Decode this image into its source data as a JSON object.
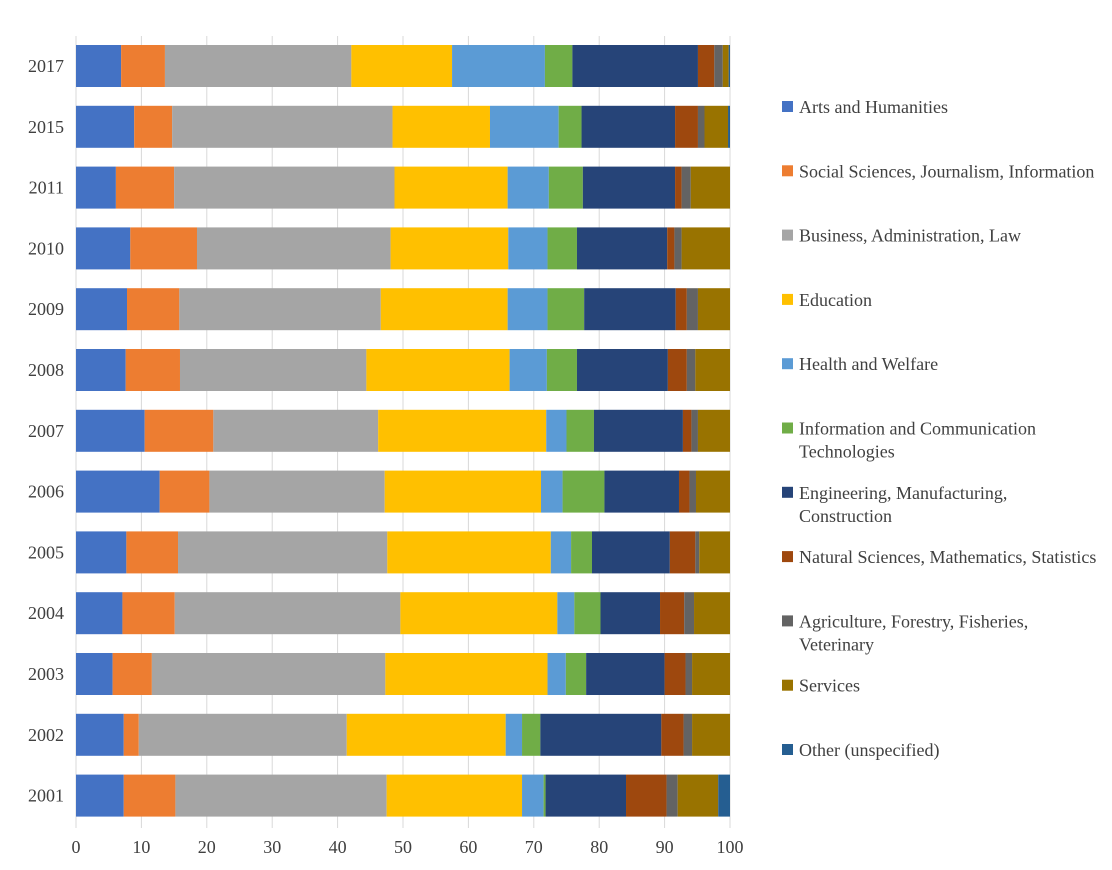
{
  "chart_data": {
    "type": "bar",
    "orientation": "horizontal",
    "stacked": true,
    "title": "",
    "xlabel": "",
    "ylabel": "",
    "xlim": [
      0,
      100
    ],
    "xticks": [
      "0",
      "10",
      "20",
      "30",
      "40",
      "50",
      "60",
      "70",
      "80",
      "90",
      "100"
    ],
    "grid": true,
    "legend_position": "right",
    "categories": [
      "2017",
      "2015",
      "2011",
      "2010",
      "2009",
      "2008",
      "2007",
      "2006",
      "2005",
      "2004",
      "2003",
      "2002",
      "2001"
    ],
    "series": [
      {
        "name": "Arts and Humanities",
        "color": "#4472c4",
        "values": [
          6.9,
          8.9,
          6.1,
          8.3,
          7.8,
          7.6,
          10.5,
          12.8,
          7.7,
          7.1,
          5.6,
          7.3,
          7.3
        ]
      },
      {
        "name": "Social Sciences, Journalism, Information",
        "color": "#ed7d31",
        "values": [
          6.7,
          5.8,
          8.9,
          10.2,
          8.0,
          8.3,
          10.5,
          7.6,
          7.9,
          8.0,
          6.0,
          2.3,
          7.9
        ]
      },
      {
        "name": "Business, Administration, Law",
        "color": "#a5a5a5",
        "values": [
          28.5,
          33.7,
          33.7,
          29.6,
          30.8,
          28.5,
          25.2,
          26.8,
          32.0,
          34.5,
          35.7,
          31.8,
          32.3
        ]
      },
      {
        "name": "Education",
        "color": "#ffc000",
        "values": [
          15.4,
          14.9,
          17.3,
          18.0,
          19.4,
          21.9,
          25.7,
          23.9,
          25.0,
          24.0,
          24.8,
          24.3,
          20.7
        ]
      },
      {
        "name": "Health and Welfare",
        "color": "#5b9bd5",
        "values": [
          14.2,
          10.5,
          6.3,
          6.0,
          6.1,
          5.7,
          3.1,
          3.3,
          3.1,
          2.6,
          2.8,
          2.5,
          3.3
        ]
      },
      {
        "name": "Information and Communication Technologies",
        "color": "#70ad47",
        "values": [
          4.2,
          3.5,
          5.2,
          4.5,
          5.6,
          4.6,
          4.2,
          6.4,
          3.2,
          4.0,
          3.1,
          2.8,
          0.3
        ]
      },
      {
        "name": "Engineering, Manufacturing, Construction",
        "color": "#264478",
        "values": [
          19.2,
          14.3,
          14.1,
          13.8,
          14.0,
          13.9,
          13.6,
          11.4,
          11.9,
          9.1,
          12.0,
          18.5,
          12.3
        ]
      },
      {
        "name": "Natural Sciences, Mathematics, Statistics",
        "color": "#9e480e",
        "values": [
          2.5,
          3.5,
          1.0,
          1.1,
          1.7,
          2.9,
          1.3,
          1.6,
          3.9,
          3.7,
          3.2,
          3.4,
          6.2
        ]
      },
      {
        "name": "Agriculture, Forestry, Fisheries, Veterinary",
        "color": "#636363",
        "values": [
          1.3,
          1.0,
          1.4,
          1.1,
          1.7,
          1.3,
          1.0,
          1.0,
          0.6,
          1.5,
          1.0,
          1.3,
          1.7
        ]
      },
      {
        "name": "Services",
        "color": "#997300",
        "values": [
          0.9,
          3.6,
          6.0,
          7.4,
          4.9,
          5.3,
          4.9,
          5.2,
          4.7,
          5.5,
          5.8,
          5.8,
          6.2
        ]
      },
      {
        "name": "Other (unspecified)",
        "color": "#255e91",
        "values": [
          0.2,
          0.3,
          0.0,
          0.0,
          0.0,
          0.0,
          0.0,
          0.0,
          0.0,
          0.0,
          0.0,
          0.0,
          1.8
        ]
      }
    ]
  }
}
